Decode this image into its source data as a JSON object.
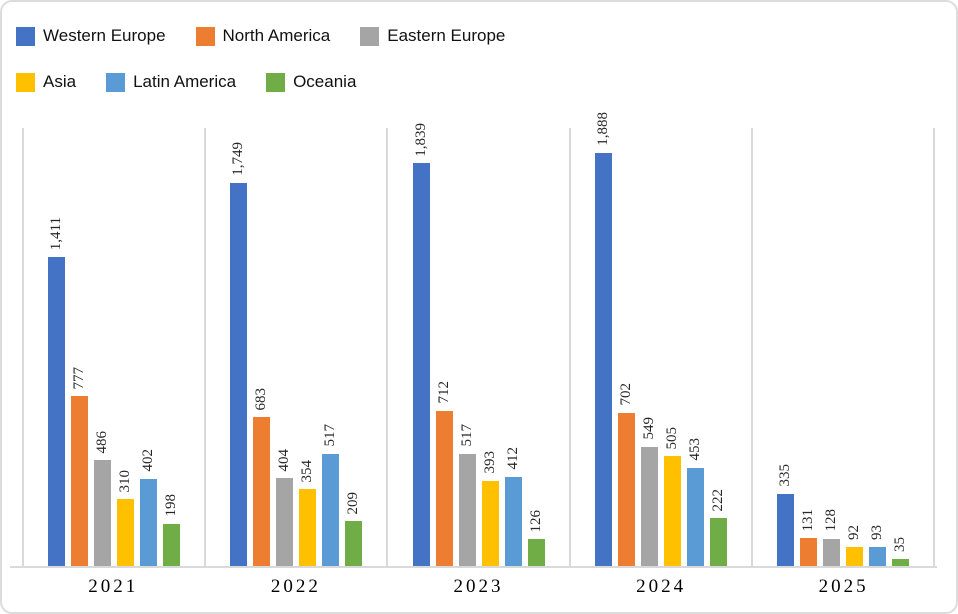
{
  "chart_data": {
    "type": "bar",
    "title": "",
    "xlabel": "",
    "ylabel": "",
    "ylim": [
      0,
      2000
    ],
    "axes_visible": {
      "y_axis": false,
      "x_axis": true
    },
    "grid": "vertical-category-separator-lines",
    "legend_position": "top-left-two-rows",
    "data_labels": "rotated-90deg-above-bars, thousands-comma-format",
    "categories": [
      "2021",
      "2022",
      "2023",
      "2024",
      "2025"
    ],
    "series": [
      {
        "name": "Western Europe",
        "color": "#4472C4",
        "values": [
          1411,
          1749,
          1839,
          1888,
          335
        ]
      },
      {
        "name": "North America",
        "color": "#ED7D31",
        "values": [
          777,
          683,
          712,
          702,
          131
        ]
      },
      {
        "name": "Eastern Europe",
        "color": "#A5A5A5",
        "values": [
          486,
          404,
          517,
          549,
          128
        ]
      },
      {
        "name": "Asia",
        "color": "#FFC000",
        "values": [
          310,
          354,
          393,
          505,
          92
        ]
      },
      {
        "name": "Latin America",
        "color": "#5B9BD5",
        "values": [
          402,
          517,
          412,
          453,
          93
        ]
      },
      {
        "name": "Oceania",
        "color": "#70AD47",
        "values": [
          198,
          209,
          126,
          222,
          35
        ]
      }
    ],
    "line_color": "#D9D9D9",
    "label_text_color": "#262626"
  }
}
